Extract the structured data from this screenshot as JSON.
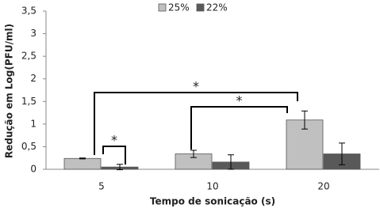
{
  "chart_data": {
    "type": "bar",
    "x_label": "Tempo de sonicação (s)",
    "y_label": "Redução em Log(PFU/ml)",
    "categories": [
      "5",
      "10",
      "20"
    ],
    "series": [
      {
        "name": "25%",
        "color": "#c0c0c0",
        "values": [
          0.24,
          0.34,
          1.09
        ],
        "errors": [
          0.01,
          0.08,
          0.2
        ]
      },
      {
        "name": "22%",
        "color": "#595959",
        "values": [
          0.05,
          0.16,
          0.34
        ],
        "errors": [
          0.06,
          0.16,
          0.24
        ]
      }
    ],
    "ylim": [
      0,
      3.5
    ],
    "yticks": [
      0,
      {
        "value": 0.5,
        "label": "0,5"
      },
      1,
      {
        "value": 1.5,
        "label": "1,5"
      },
      2,
      {
        "value": 2.5,
        "label": "2,5"
      },
      3,
      {
        "value": 3.5,
        "label": "3,5"
      }
    ],
    "annotations": [
      "*",
      "*",
      "*"
    ],
    "legend": "top"
  }
}
